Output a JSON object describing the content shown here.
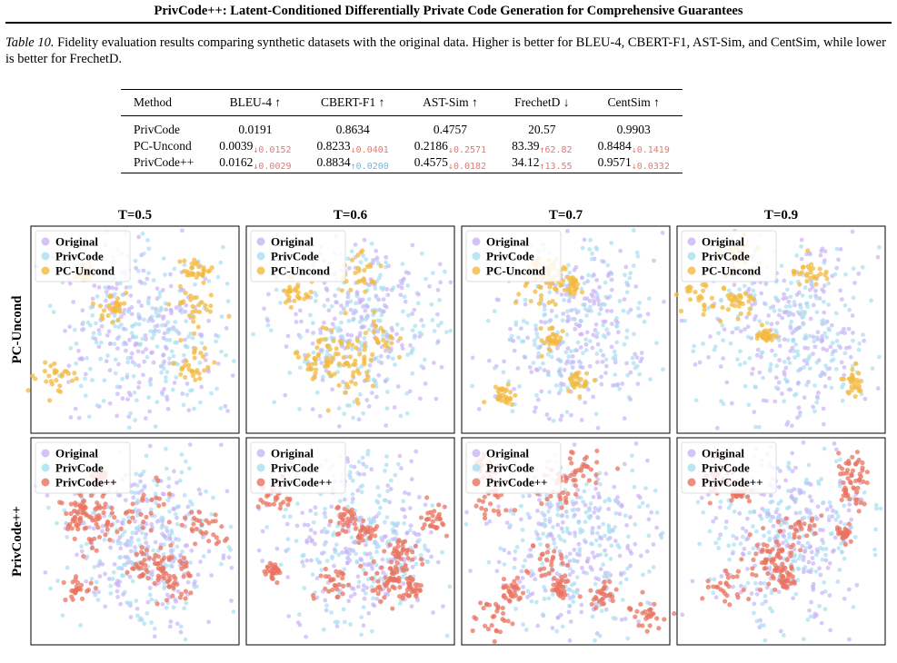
{
  "header": {
    "title": "PrivCode++: Latent-Conditioned Differentially Private Code Generation for Comprehensive Guarantees"
  },
  "caption": {
    "label": "Table 10.",
    "text": "Fidelity evaluation results comparing synthetic datasets with the original data. Higher is better for BLEU-4, CBERT-F1, AST-Sim, and CentSim, while lower is better for FrechetD."
  },
  "table": {
    "columns": [
      "Method",
      "BLEU-4 ↑",
      "CBERT-F1 ↑",
      "AST-Sim ↑",
      "FrechetD ↓",
      "CentSim ↑"
    ],
    "rows": [
      [
        "PrivCode",
        "0.0191",
        "0.8634",
        "0.4757",
        "20.57",
        "0.9903"
      ],
      [
        "PC-Uncond",
        {
          "text": "0.0039",
          "delta": "↓0.0152",
          "delta_color": "#e8766c"
        },
        {
          "text": "0.8233",
          "delta": "↓0.0401",
          "delta_color": "#e8766c"
        },
        {
          "text": "0.2186",
          "delta": "↓0.2571",
          "delta_color": "#e8766c"
        },
        {
          "text": "83.39",
          "delta": "↑62.82",
          "delta_color": "#e8766c"
        },
        {
          "text": "0.8484",
          "delta": "↓0.1419",
          "delta_color": "#e8766c"
        }
      ],
      [
        "PrivCode++",
        {
          "text": "0.0162",
          "delta": "↓0.0029",
          "delta_color": "#e8766c"
        },
        {
          "text": "0.8834",
          "delta": "↑0.0200",
          "delta_color": "#7fb3d5"
        },
        {
          "text": "0.4575",
          "delta": "↓0.0182",
          "delta_color": "#e8766c"
        },
        {
          "text": "34.12",
          "delta": "↑13.55",
          "delta_color": "#e8766c"
        },
        {
          "text": "0.9571",
          "delta": "↓0.0332",
          "delta_color": "#e8766c"
        }
      ]
    ]
  },
  "figure": {
    "columns": [
      "T=0.5",
      "T=0.6",
      "T=0.7",
      "T=0.9"
    ],
    "rows": [
      {
        "label": "PC-Uncond",
        "legend": [
          "Original",
          "PrivCode",
          "PC-Uncond"
        ],
        "colors": [
          "#c8b4f6",
          "#a9def1",
          "#f3b93f"
        ]
      },
      {
        "label": "PrivCode++",
        "legend": [
          "Original",
          "PrivCode",
          "PrivCode++"
        ],
        "colors": [
          "#c8b4f6",
          "#a9def1",
          "#e9735f"
        ]
      }
    ]
  }
}
